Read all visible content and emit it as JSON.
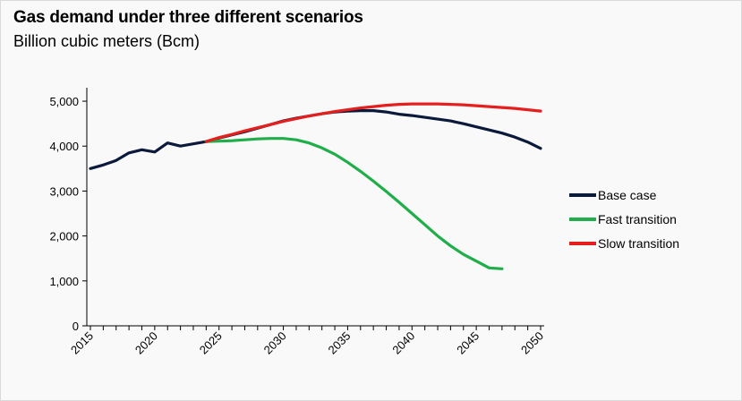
{
  "chart_data": {
    "type": "line",
    "title": "Gas demand under three different scenarios",
    "subtitle": "Billion cubic meters (Bcm)",
    "xlabel": "",
    "ylabel": "",
    "xlim": [
      2015,
      2050
    ],
    "ylim": [
      0,
      5000
    ],
    "x_ticks": [
      "2015",
      "2020",
      "2025",
      "2030",
      "2035",
      "2040",
      "2045",
      "2050"
    ],
    "y_ticks": [
      "0",
      "1,000",
      "2,000",
      "3,000",
      "4,000",
      "5,000"
    ],
    "legend_position": "right",
    "series": [
      {
        "name": "Base case",
        "color": "#0b1a3a",
        "points": [
          [
            2015,
            3500
          ],
          [
            2016,
            3580
          ],
          [
            2017,
            3680
          ],
          [
            2018,
            3850
          ],
          [
            2019,
            3920
          ],
          [
            2020,
            3870
          ],
          [
            2021,
            4070
          ],
          [
            2022,
            4000
          ],
          [
            2023,
            4050
          ],
          [
            2024,
            4100
          ],
          [
            2025,
            4180
          ],
          [
            2026,
            4250
          ],
          [
            2027,
            4320
          ],
          [
            2028,
            4400
          ],
          [
            2029,
            4480
          ],
          [
            2030,
            4560
          ],
          [
            2031,
            4620
          ],
          [
            2032,
            4670
          ],
          [
            2033,
            4720
          ],
          [
            2034,
            4760
          ],
          [
            2035,
            4780
          ],
          [
            2036,
            4790
          ],
          [
            2037,
            4790
          ],
          [
            2038,
            4760
          ],
          [
            2039,
            4710
          ],
          [
            2040,
            4680
          ],
          [
            2041,
            4640
          ],
          [
            2042,
            4600
          ],
          [
            2043,
            4560
          ],
          [
            2044,
            4500
          ],
          [
            2045,
            4430
          ],
          [
            2046,
            4360
          ],
          [
            2047,
            4290
          ],
          [
            2048,
            4200
          ],
          [
            2049,
            4090
          ],
          [
            2050,
            3950
          ]
        ]
      },
      {
        "name": "Fast transition",
        "color": "#1fae49",
        "points": [
          [
            2024,
            4100
          ],
          [
            2025,
            4110
          ],
          [
            2026,
            4120
          ],
          [
            2027,
            4140
          ],
          [
            2028,
            4160
          ],
          [
            2029,
            4170
          ],
          [
            2030,
            4170
          ],
          [
            2031,
            4140
          ],
          [
            2032,
            4070
          ],
          [
            2033,
            3960
          ],
          [
            2034,
            3820
          ],
          [
            2035,
            3640
          ],
          [
            2036,
            3440
          ],
          [
            2037,
            3220
          ],
          [
            2038,
            2990
          ],
          [
            2039,
            2750
          ],
          [
            2040,
            2500
          ],
          [
            2041,
            2250
          ],
          [
            2042,
            2000
          ],
          [
            2043,
            1780
          ],
          [
            2044,
            1590
          ],
          [
            2045,
            1440
          ],
          [
            2046,
            1290
          ],
          [
            2047,
            1270
          ]
        ]
      },
      {
        "name": "Slow transition",
        "color": "#e51e1e",
        "points": [
          [
            2024,
            4100
          ],
          [
            2025,
            4190
          ],
          [
            2026,
            4260
          ],
          [
            2027,
            4340
          ],
          [
            2028,
            4410
          ],
          [
            2029,
            4480
          ],
          [
            2030,
            4550
          ],
          [
            2031,
            4610
          ],
          [
            2032,
            4670
          ],
          [
            2033,
            4720
          ],
          [
            2034,
            4770
          ],
          [
            2035,
            4810
          ],
          [
            2036,
            4850
          ],
          [
            2037,
            4880
          ],
          [
            2038,
            4910
          ],
          [
            2039,
            4930
          ],
          [
            2040,
            4940
          ],
          [
            2041,
            4940
          ],
          [
            2042,
            4940
          ],
          [
            2043,
            4930
          ],
          [
            2044,
            4920
          ],
          [
            2045,
            4900
          ],
          [
            2046,
            4880
          ],
          [
            2047,
            4860
          ],
          [
            2048,
            4840
          ],
          [
            2049,
            4810
          ],
          [
            2050,
            4780
          ]
        ]
      }
    ]
  }
}
